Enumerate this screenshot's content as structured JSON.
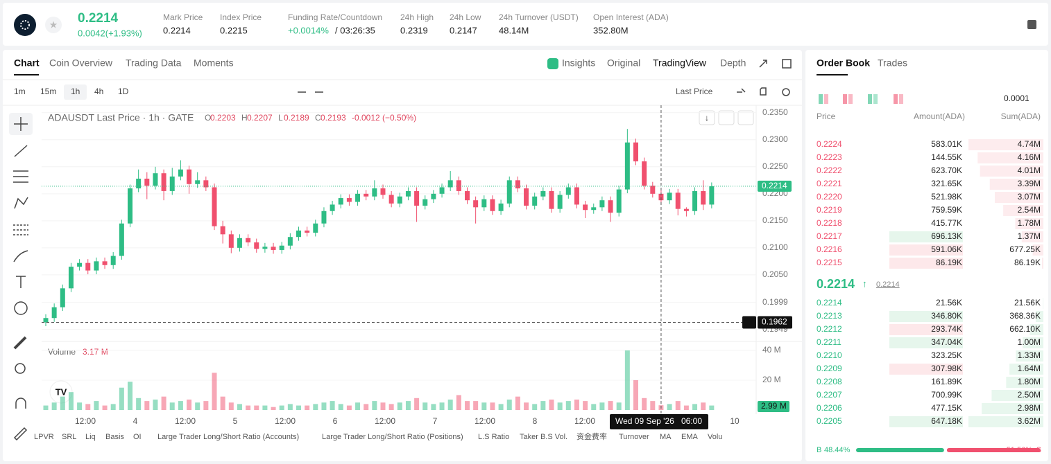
{
  "header": {
    "price": "0.2214",
    "change": "0.0042(+1.93%)",
    "stats": [
      {
        "label": "Mark Price",
        "value": "0.2214"
      },
      {
        "label": "Index Price",
        "value": "0.2215"
      },
      {
        "label": "Funding Rate/Countdown",
        "value": "+0.0014%",
        "extra": "/ 03:26:35"
      },
      {
        "label": "24h High",
        "value": "0.2319"
      },
      {
        "label": "24h Low",
        "value": "0.2147"
      },
      {
        "label": "24h Turnover (USDT)",
        "value": "48.14M"
      },
      {
        "label": "Open Interest (ADA)",
        "value": "352.80M"
      }
    ]
  },
  "chart_tabs": [
    "Chart",
    "Coin Overview",
    "Trading Data",
    "Moments"
  ],
  "view_tabs": [
    "Insights",
    "Original",
    "TradingView",
    "Depth"
  ],
  "intervals": [
    "1m",
    "15m",
    "1h",
    "4h",
    "1D"
  ],
  "price_source": "Last Price",
  "chart_data": {
    "type": "candlestick",
    "title": "ADAUSDT Last Price · 1h · GATE",
    "ohlc": [
      {
        "key": "O",
        "value": "0.2203"
      },
      {
        "key": "H",
        "value": "0.2207"
      },
      {
        "key": "L",
        "value": "0.2189"
      },
      {
        "key": "C",
        "value": "0.2193"
      },
      {
        "key": "",
        "value": "-0.0012 (−0.50%)"
      }
    ],
    "ylim": [
      0.1928,
      0.236
    ],
    "yticks": [
      {
        "value": 0.235,
        "label": "0.2350"
      },
      {
        "value": 0.23,
        "label": "0.2300"
      },
      {
        "value": 0.225,
        "label": "0.2250"
      },
      {
        "value": 0.22,
        "label": "0.2200"
      },
      {
        "value": 0.215,
        "label": "0.2150"
      },
      {
        "value": 0.21,
        "label": "0.2100"
      },
      {
        "value": 0.205,
        "label": "0.2050"
      },
      0.1999,
      0.1949
    ],
    "grid": true,
    "xticks": [
      "12:00",
      "4",
      "12:00",
      "5",
      "12:00",
      "6",
      "12:00",
      "7",
      "12:00",
      "8",
      "12:00",
      null,
      null,
      "10"
    ],
    "candles": {
      "open": [
        0.1962,
        0.197,
        0.199,
        0.2025,
        0.2065,
        0.2072,
        0.2058,
        0.2075,
        0.2068,
        0.2085,
        0.2145,
        0.221,
        0.2228,
        0.2215,
        0.2238,
        0.2205,
        0.2232,
        0.2245,
        0.2218,
        0.2225,
        0.2212,
        0.214,
        0.2125,
        0.21,
        0.2118,
        0.211,
        0.2098,
        0.2102,
        0.2096,
        0.2104,
        0.212,
        0.2132,
        0.2128,
        0.2145,
        0.2168,
        0.218,
        0.2192,
        0.2185,
        0.22,
        0.2195,
        0.221,
        0.2198,
        0.2182,
        0.2195,
        0.2205,
        0.2178,
        0.219,
        0.22,
        0.2212,
        0.2225,
        0.2205,
        0.2188,
        0.2175,
        0.219,
        0.2168,
        0.2182,
        0.2225,
        0.221,
        0.2178,
        0.2195,
        0.2205,
        0.2172,
        0.2198,
        0.2212,
        0.218,
        0.217,
        0.2175,
        0.2188,
        0.2165,
        0.2208,
        0.2295,
        0.226,
        0.2215,
        0.22,
        0.2188,
        0.2202,
        0.2172,
        0.2168,
        0.2205,
        0.218
      ],
      "high": [
        0.1977,
        0.1997,
        0.2032,
        0.2072,
        0.2079,
        0.2079,
        0.2082,
        0.2082,
        0.2092,
        0.2152,
        0.2217,
        0.2245,
        0.224,
        0.225,
        0.2245,
        0.2248,
        0.2262,
        0.2252,
        0.224,
        0.2232,
        0.2219,
        0.215,
        0.2132,
        0.2125,
        0.2125,
        0.2117,
        0.2109,
        0.2109,
        0.2111,
        0.2127,
        0.2139,
        0.2139,
        0.2152,
        0.2175,
        0.2187,
        0.2199,
        0.2199,
        0.2207,
        0.2207,
        0.2225,
        0.2217,
        0.2205,
        0.2202,
        0.2212,
        0.2212,
        0.2197,
        0.2207,
        0.2219,
        0.2242,
        0.2232,
        0.2212,
        0.2195,
        0.2197,
        0.2197,
        0.2189,
        0.2232,
        0.2232,
        0.2217,
        0.2202,
        0.2212,
        0.2212,
        0.2205,
        0.2219,
        0.2219,
        0.2187,
        0.2182,
        0.2195,
        0.2195,
        0.2215,
        0.232,
        0.2302,
        0.2267,
        0.2222,
        0.2207,
        0.2209,
        0.2209,
        0.2175,
        0.2212,
        0.2225,
        0.2221
      ],
      "low": [
        0.1955,
        0.1963,
        0.1983,
        0.2018,
        0.2058,
        0.2051,
        0.2051,
        0.2061,
        0.2061,
        0.2078,
        0.2138,
        0.2203,
        0.219,
        0.2208,
        0.2188,
        0.2198,
        0.2225,
        0.22,
        0.2211,
        0.2205,
        0.2133,
        0.2108,
        0.209,
        0.2093,
        0.2103,
        0.2091,
        0.2091,
        0.2089,
        0.2089,
        0.2097,
        0.2113,
        0.2121,
        0.2121,
        0.2138,
        0.2161,
        0.2173,
        0.2178,
        0.2178,
        0.2188,
        0.2188,
        0.2191,
        0.2175,
        0.2175,
        0.2188,
        0.2148,
        0.2171,
        0.2183,
        0.2193,
        0.2205,
        0.2198,
        0.2181,
        0.2145,
        0.2168,
        0.2161,
        0.2161,
        0.2175,
        0.2203,
        0.2171,
        0.2171,
        0.2188,
        0.2165,
        0.2165,
        0.2191,
        0.2173,
        0.2155,
        0.2163,
        0.2168,
        0.2148,
        0.2158,
        0.2201,
        0.2253,
        0.2208,
        0.2193,
        0.2181,
        0.2181,
        0.216,
        0.2158,
        0.2161,
        0.217,
        0.2173
      ],
      "close": [
        0.197,
        0.199,
        0.2025,
        0.2065,
        0.2072,
        0.2058,
        0.2075,
        0.2068,
        0.2085,
        0.2145,
        0.221,
        0.2228,
        0.2215,
        0.2238,
        0.2205,
        0.2232,
        0.2245,
        0.2218,
        0.2225,
        0.2212,
        0.214,
        0.2125,
        0.21,
        0.2118,
        0.211,
        0.2098,
        0.2102,
        0.2096,
        0.2104,
        0.212,
        0.2132,
        0.2128,
        0.2145,
        0.2168,
        0.218,
        0.2192,
        0.2185,
        0.22,
        0.2195,
        0.221,
        0.2198,
        0.2182,
        0.2195,
        0.2205,
        0.2178,
        0.219,
        0.22,
        0.2212,
        0.2225,
        0.2205,
        0.2188,
        0.2175,
        0.219,
        0.2168,
        0.2182,
        0.2225,
        0.221,
        0.2178,
        0.2195,
        0.2205,
        0.2172,
        0.2198,
        0.2212,
        0.218,
        0.217,
        0.2175,
        0.2188,
        0.2165,
        0.2208,
        0.2295,
        0.226,
        0.2215,
        0.22,
        0.2188,
        0.2202,
        0.2172,
        0.2168,
        0.2205,
        0.218,
        0.2214
      ]
    },
    "up_color": "#2ebd85",
    "down_color": "#f0506e",
    "volume_title": "Volume",
    "volume_hover_label": "3.17 M",
    "volume_last_label": "2.99 M",
    "volume": [
      3,
      5,
      9,
      12,
      5,
      4,
      6,
      3,
      4,
      15,
      19,
      8,
      6,
      7,
      9,
      5,
      6,
      7,
      5,
      6,
      25,
      9,
      5,
      4,
      3,
      3,
      3,
      2,
      3,
      4,
      3,
      3,
      4,
      5,
      6,
      4,
      3,
      5,
      4,
      6,
      5,
      4,
      5,
      6,
      8,
      5,
      4,
      5,
      7,
      10,
      6,
      6,
      5,
      5,
      4,
      7,
      9,
      5,
      4,
      6,
      7,
      5,
      6,
      7,
      6,
      4,
      5,
      6,
      5,
      40,
      20,
      8,
      6,
      3.17,
      4,
      6,
      3,
      4,
      5,
      2.99
    ],
    "volume_ylim": [
      0,
      40
    ],
    "volume_yticks": [
      {
        "value": 20,
        "label": "20 M"
      },
      {
        "value": 40,
        "label": "40 M"
      }
    ],
    "last_price": {
      "value": 0.2214,
      "label": "0.2214"
    },
    "crosshair": {
      "price": 0.1962,
      "price_label": "0.1962",
      "date": "Wed 09 Sep '26",
      "time": "06:00"
    }
  },
  "indicators": [
    "LPVR",
    "SRL",
    "Liq",
    "Basis",
    "OI",
    "Large Trader Long/Short Ratio (Accounts)",
    "Large Trader Long/Short Ratio (Positions)",
    "L.S Ratio",
    "Taker B.S Vol.",
    "资金费率",
    "Turnover",
    "MA",
    "EMA",
    "Volu"
  ],
  "order_book": {
    "tabs": [
      "Order Book",
      "Trades"
    ],
    "precision": "0.0001",
    "columns": [
      "Price",
      "Amount(ADA)",
      "Sum(ADA)"
    ],
    "asks": [
      {
        "price": "0.2224",
        "amount": "583.01K",
        "sum": 4740000,
        "sum_label": "4.74M"
      },
      {
        "price": "0.2223",
        "amount": "144.55K",
        "sum": 4160000,
        "sum_label": "4.16M"
      },
      {
        "price": "0.2222",
        "amount": "623.70K",
        "sum": 4010000,
        "sum_label": "4.01M"
      },
      {
        "price": "0.2221",
        "amount": "321.65K",
        "sum": 3390000,
        "sum_label": "3.39M"
      },
      {
        "price": "0.2220",
        "amount": "521.98K",
        "sum": 3070000,
        "sum_label": "3.07M"
      },
      {
        "price": "0.2219",
        "amount": "759.59K",
        "sum": 2540000,
        "sum_label": "2.54M"
      },
      {
        "price": "0.2218",
        "amount": "415.77K",
        "sum": 1780000,
        "sum_label": "1.78M"
      },
      {
        "price": "0.2217",
        "amount": "696.13K",
        "sum": 1370000,
        "sum_label": "1.37M"
      },
      {
        "price": "0.2216",
        "amount": "591.06K",
        "sum": 677250,
        "sum_label": "677.25K"
      },
      {
        "price": "0.2215",
        "amount": "86.19K",
        "sum": 86190,
        "sum_label": "86.19K"
      }
    ],
    "last": "0.2214",
    "mark": "0.2214",
    "bids": [
      {
        "price": "0.2214",
        "amount": "21.56K",
        "sum": 21560,
        "sum_label": "21.56K"
      },
      {
        "price": "0.2213",
        "amount": "346.80K",
        "sum": 368360,
        "sum_label": "368.36K"
      },
      {
        "price": "0.2212",
        "amount": "293.74K",
        "sum": 662100,
        "sum_label": "662.10K"
      },
      {
        "price": "0.2211",
        "amount": "347.04K",
        "sum": 1000000,
        "sum_label": "1.00M"
      },
      {
        "price": "0.2210",
        "amount": "323.25K",
        "sum": 1330000,
        "sum_label": "1.33M"
      },
      {
        "price": "0.2209",
        "amount": "307.98K",
        "sum": 1640000,
        "sum_label": "1.64M"
      },
      {
        "price": "0.2208",
        "amount": "161.89K",
        "sum": 1800000,
        "sum_label": "1.80M"
      },
      {
        "price": "0.2207",
        "amount": "700.99K",
        "sum": 2500000,
        "sum_label": "2.50M"
      },
      {
        "price": "0.2206",
        "amount": "477.15K",
        "sum": 2980000,
        "sum_label": "2.98M"
      },
      {
        "price": "0.2205",
        "amount": "647.18K",
        "sum": 3620000,
        "sum_label": "3.62M"
      }
    ],
    "ratio": {
      "buy_key": "B",
      "buy": 48.44,
      "buy_label": "48.44%",
      "sell": 51.56,
      "sell_label": "51.56%",
      "sell_key": "S"
    }
  }
}
